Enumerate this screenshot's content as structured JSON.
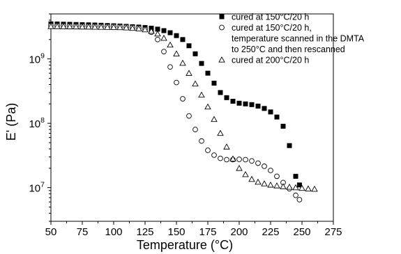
{
  "chart_data": {
    "type": "scatter",
    "xlabel": "Temperature (°C)",
    "ylabel": "E' (Pa)",
    "xlim": [
      50,
      275
    ],
    "ylim": [
      3000000,
      5000000000
    ],
    "y_scale": "log",
    "grid": false,
    "legend_position": "top-right",
    "x_ticks": [
      50,
      75,
      100,
      125,
      150,
      175,
      200,
      225,
      250,
      275
    ],
    "x_tick_labels": [
      "50",
      "75",
      "100",
      "125",
      "150",
      "175",
      "200",
      "225",
      "250",
      "275"
    ],
    "y_ticks": [
      10000000,
      100000000,
      1000000000
    ],
    "y_tick_labels": [
      {
        "base": "10",
        "exp": "7"
      },
      {
        "base": "10",
        "exp": "8"
      },
      {
        "base": "10",
        "exp": "9"
      }
    ],
    "series": [
      {
        "name": "cured at 150°C/20 h",
        "legend_lines": [
          "cured at 150°C/20 h"
        ],
        "marker": "filled-square",
        "points": [
          [
            50,
            3500000000.0
          ],
          [
            55,
            3480000000.0
          ],
          [
            60,
            3460000000.0
          ],
          [
            65,
            3440000000.0
          ],
          [
            70,
            3420000000.0
          ],
          [
            75,
            3400000000.0
          ],
          [
            80,
            3380000000.0
          ],
          [
            85,
            3360000000.0
          ],
          [
            90,
            3330000000.0
          ],
          [
            95,
            3300000000.0
          ],
          [
            100,
            3270000000.0
          ],
          [
            105,
            3240000000.0
          ],
          [
            110,
            3200000000.0
          ],
          [
            115,
            3160000000.0
          ],
          [
            120,
            3120000000.0
          ],
          [
            125,
            3070000000.0
          ],
          [
            130,
            3000000000.0
          ],
          [
            135,
            2900000000.0
          ],
          [
            140,
            2750000000.0
          ],
          [
            145,
            2550000000.0
          ],
          [
            150,
            2300000000.0
          ],
          [
            155,
            2000000000.0
          ],
          [
            160,
            1600000000.0
          ],
          [
            165,
            1200000000.0
          ],
          [
            170,
            850000000.0
          ],
          [
            175,
            600000000.0
          ],
          [
            180,
            420000000.0
          ],
          [
            185,
            300000000.0
          ],
          [
            190,
            250000000.0
          ],
          [
            195,
            220000000.0
          ],
          [
            200,
            205000000.0
          ],
          [
            205,
            200000000.0
          ],
          [
            210,
            195000000.0
          ],
          [
            215,
            185000000.0
          ],
          [
            220,
            170000000.0
          ],
          [
            225,
            150000000.0
          ],
          [
            230,
            125000000.0
          ],
          [
            235,
            90000000.0
          ],
          [
            240,
            45000000.0
          ],
          [
            245,
            15000000.0
          ],
          [
            248,
            11000000.0
          ]
        ]
      },
      {
        "name": "cured at 150°C/20 h, temperature scanned in the DMTA to 250°C and then rescanned",
        "legend_lines": [
          "cured at 150°C/20 h,",
          "temperature scanned in the DMTA",
          "to 250°C and then rescanned"
        ],
        "marker": "open-circle",
        "points": [
          [
            50,
            3300000000.0
          ],
          [
            55,
            3290000000.0
          ],
          [
            60,
            3280000000.0
          ],
          [
            65,
            3270000000.0
          ],
          [
            70,
            3260000000.0
          ],
          [
            75,
            3250000000.0
          ],
          [
            80,
            3240000000.0
          ],
          [
            85,
            3230000000.0
          ],
          [
            90,
            3220000000.0
          ],
          [
            95,
            3210000000.0
          ],
          [
            100,
            3200000000.0
          ],
          [
            105,
            3180000000.0
          ],
          [
            110,
            3150000000.0
          ],
          [
            115,
            3100000000.0
          ],
          [
            120,
            3030000000.0
          ],
          [
            125,
            2900000000.0
          ],
          [
            130,
            2600000000.0
          ],
          [
            135,
            2000000000.0
          ],
          [
            140,
            1300000000.0
          ],
          [
            145,
            750000000.0
          ],
          [
            150,
            430000000.0
          ],
          [
            155,
            240000000.0
          ],
          [
            160,
            130000000.0
          ],
          [
            165,
            80000000.0
          ],
          [
            170,
            53000000.0
          ],
          [
            175,
            38000000.0
          ],
          [
            180,
            32000000.0
          ],
          [
            185,
            28500000.0
          ],
          [
            190,
            27200000.0
          ],
          [
            195,
            27200000.0
          ],
          [
            200,
            27500000.0
          ],
          [
            205,
            27200000.0
          ],
          [
            210,
            26000000.0
          ],
          [
            215,
            24000000.0
          ],
          [
            220,
            21500000.0
          ],
          [
            225,
            18500000.0
          ],
          [
            230,
            15000000.0
          ],
          [
            235,
            12000000.0
          ],
          [
            240,
            9600000.0
          ],
          [
            245,
            7600000.0
          ],
          [
            248,
            6500000.0
          ]
        ]
      },
      {
        "name": "cured at 200°C/20 h",
        "legend_lines": [
          "cured at 200°C/20 h"
        ],
        "marker": "open-triangle",
        "points": [
          [
            50,
            3200000000.0
          ],
          [
            55,
            3190000000.0
          ],
          [
            60,
            3180000000.0
          ],
          [
            65,
            3170000000.0
          ],
          [
            70,
            3160000000.0
          ],
          [
            75,
            3150000000.0
          ],
          [
            80,
            3140000000.0
          ],
          [
            85,
            3130000000.0
          ],
          [
            90,
            3120000000.0
          ],
          [
            95,
            3110000000.0
          ],
          [
            100,
            3100000000.0
          ],
          [
            105,
            3080000000.0
          ],
          [
            110,
            3050000000.0
          ],
          [
            115,
            3000000000.0
          ],
          [
            120,
            2950000000.0
          ],
          [
            125,
            2850000000.0
          ],
          [
            130,
            2700000000.0
          ],
          [
            135,
            2450000000.0
          ],
          [
            140,
            2100000000.0
          ],
          [
            145,
            1650000000.0
          ],
          [
            150,
            1200000000.0
          ],
          [
            155,
            860000000.0
          ],
          [
            160,
            600000000.0
          ],
          [
            165,
            410000000.0
          ],
          [
            170,
            275000000.0
          ],
          [
            175,
            180000000.0
          ],
          [
            180,
            115000000.0
          ],
          [
            185,
            70000000.0
          ],
          [
            190,
            43000000.0
          ],
          [
            195,
            28000000.0
          ],
          [
            200,
            20000000.0
          ],
          [
            205,
            16000000.0
          ],
          [
            210,
            13500000.0
          ],
          [
            215,
            12200000.0
          ],
          [
            220,
            11500000.0
          ],
          [
            225,
            11000000.0
          ],
          [
            230,
            10700000.0
          ],
          [
            235,
            10400000.0
          ],
          [
            240,
            10200000.0
          ],
          [
            245,
            10000000.0
          ],
          [
            250,
            9800000.0
          ],
          [
            255,
            9600000.0
          ],
          [
            260,
            9500000.0
          ]
        ]
      }
    ]
  }
}
